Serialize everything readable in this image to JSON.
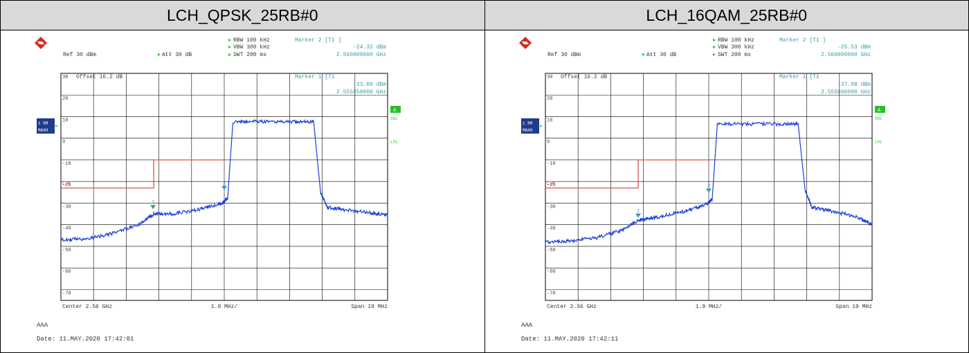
{
  "colors": {
    "trace": "#1b3fd6",
    "limit": "#d9534f",
    "teal": "#3a9aa6",
    "grid": "#000000",
    "green": "#22c322",
    "navy": "#1f3c8c"
  },
  "panels": [
    {
      "header": "LCH_QPSK_25RB#0",
      "settings": {
        "rbw": "RBW 100 kHz",
        "vbw": "VBW 300 kHz",
        "swt": "SWT 200 ms",
        "ref": "Ref  30 dBm",
        "att": "Att  30 dB"
      },
      "marker2": {
        "label": "Marker 2 [T1 ]",
        "level": "-24.32 dBm",
        "freq": "2.560000000 GHz"
      },
      "marker1": {
        "label": "Marker 1 [T1",
        "level": "-33.09 dBm",
        "freq": "2.555858000 GHz"
      },
      "offset": "Offset  16.2 dB",
      "side_a": "A",
      "side_sgl": "SGL",
      "side_lvl": "LVL",
      "trace_badge_1": "1 RM",
      "trace_badge_2": "MAXH",
      "lim": "LIM",
      "center": "Center 2.56 GHz",
      "per_div": "1.9 MHz/",
      "span": "Span 19 MHz",
      "footer_label": "AAA",
      "date": "Date: 11.MAY.2020  17:42:01",
      "m1_tag": "1",
      "m2_tag": "2",
      "y_ticks": [
        "30",
        "20",
        "10",
        "0",
        "-10",
        "-20",
        "-30",
        "-40",
        "-50",
        "-60",
        "-70"
      ],
      "chart_data": {
        "type": "line",
        "xlabel": "",
        "ylabel": "",
        "x_range_mhz": [
          2550.5,
          2569.5
        ],
        "ylim": [
          -75,
          30
        ],
        "series": [
          {
            "x": [
              2550.5,
              2552.0,
              2553.5,
              2555.0,
              2555.9,
              2557.0,
              2558.5,
              2559.9,
              2560.2,
              2560.5,
              2562.0,
              2564.0,
              2565.2,
              2565.6,
              2566.0,
              2567.0,
              2568.5,
              2569.5
            ],
            "y": [
              -47.0,
              -46.5,
              -44.0,
              -40.0,
              -35.0,
              -35.0,
              -33.0,
              -30.0,
              -27.5,
              7.5,
              7.8,
              7.6,
              7.7,
              -25.0,
              -32.0,
              -33.0,
              -34.5,
              -35.5
            ]
          }
        ],
        "limit_line": {
          "x": [
            2550.5,
            2555.9,
            2555.9,
            2560.0
          ],
          "y": [
            -23.0,
            -23.0,
            -10.0,
            -10.0
          ]
        },
        "markers": [
          {
            "name": "1",
            "x": 2555.858,
            "y": -33.09
          },
          {
            "name": "2",
            "x": 2560.0,
            "y": -24.32
          }
        ]
      }
    },
    {
      "header": "LCH_16QAM_25RB#0",
      "settings": {
        "rbw": "RBW 100 kHz",
        "vbw": "VBW 300 kHz",
        "swt": "SWT 200 ms",
        "ref": "Ref  30 dBm",
        "att": "Att  30 dB"
      },
      "marker2": {
        "label": "Marker 2 [T1 ]",
        "level": "-25.53 dBm",
        "freq": "2.560000000 GHz"
      },
      "marker1": {
        "label": "Marker 1 [T1",
        "level": "-37.08 dBm",
        "freq": "2.555896000 GHz"
      },
      "offset": "Offset  16.2 dB",
      "side_a": "A",
      "side_sgl": "SGL",
      "side_lvl": "LVL",
      "trace_badge_1": "1 RM",
      "trace_badge_2": "MAXH",
      "lim": "LIM",
      "center": "Center 2.56 GHz",
      "per_div": "1.9 MHz/",
      "span": "Span 19 MHz",
      "footer_label": "AAA",
      "date": "Date: 11.MAY.2020  17:42:11",
      "m1_tag": "1",
      "m2_tag": "2",
      "y_ticks": [
        "30",
        "20",
        "10",
        "0",
        "-10",
        "-20",
        "-30",
        "-40",
        "-50",
        "-60",
        "-70"
      ],
      "chart_data": {
        "type": "line",
        "xlabel": "",
        "ylabel": "",
        "x_range_mhz": [
          2550.5,
          2569.5
        ],
        "ylim": [
          -75,
          30
        ],
        "series": [
          {
            "x": [
              2550.5,
              2552.0,
              2553.5,
              2555.0,
              2555.9,
              2557.0,
              2558.5,
              2559.9,
              2560.2,
              2560.5,
              2562.0,
              2564.0,
              2565.2,
              2565.6,
              2566.0,
              2567.0,
              2568.5,
              2569.5
            ],
            "y": [
              -48.0,
              -47.5,
              -46.0,
              -42.5,
              -38.0,
              -36.5,
              -34.0,
              -30.5,
              -28.0,
              6.5,
              6.7,
              6.5,
              6.7,
              -24.0,
              -32.0,
              -33.5,
              -36.0,
              -40.0
            ]
          }
        ],
        "limit_line": {
          "x": [
            2550.5,
            2555.9,
            2555.9,
            2560.0
          ],
          "y": [
            -23.0,
            -23.0,
            -10.0,
            -10.0
          ]
        },
        "markers": [
          {
            "name": "1",
            "x": 2555.896,
            "y": -37.08
          },
          {
            "name": "2",
            "x": 2560.0,
            "y": -25.53
          }
        ]
      }
    }
  ]
}
